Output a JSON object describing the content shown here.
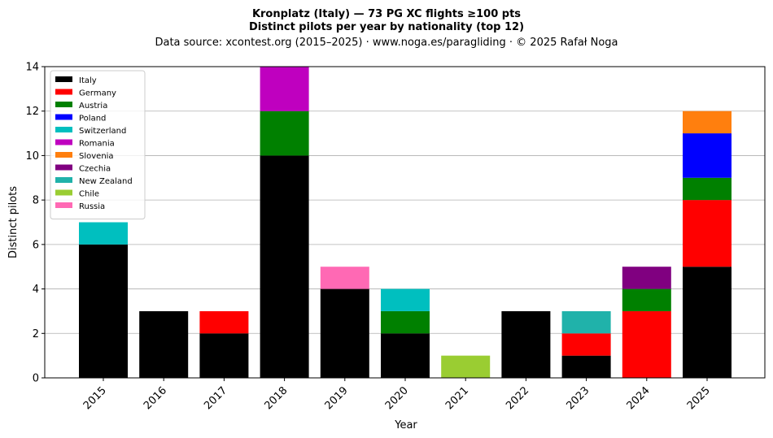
{
  "chart_data": {
    "type": "bar",
    "stacked": true,
    "title": "Kronplatz (Italy)  —  73 PG XC flights ≥100 pts",
    "subtitle": "Distinct pilots per year by nationality (top 12)",
    "source": "Data source: xcontest.org (2015–2025)  ·  www.noga.es/paragliding  ·  © 2025 Rafał Noga",
    "xlabel": "Year",
    "ylabel": "Distinct pilots",
    "ylim": [
      0,
      14
    ],
    "yticks": [
      "0",
      "2",
      "4",
      "6",
      "8",
      "10",
      "12",
      "14"
    ],
    "grid": "horizontal",
    "legend_position": "top-left",
    "categories": [
      "2015",
      "2016",
      "2017",
      "2018",
      "2019",
      "2020",
      "2021",
      "2022",
      "2023",
      "2024",
      "2025"
    ],
    "series": [
      {
        "name": "Italy",
        "color": "#000000",
        "values": [
          6,
          3,
          2,
          10,
          4,
          2,
          0,
          3,
          1,
          0,
          5
        ]
      },
      {
        "name": "Germany",
        "color": "#ff0000",
        "values": [
          0,
          0,
          1,
          0,
          0,
          0,
          0,
          0,
          1,
          3,
          3
        ]
      },
      {
        "name": "Austria",
        "color": "#008000",
        "values": [
          0,
          0,
          0,
          2,
          0,
          1,
          0,
          0,
          0,
          1,
          1
        ]
      },
      {
        "name": "Poland",
        "color": "#0000ff",
        "values": [
          0,
          0,
          0,
          0,
          0,
          0,
          0,
          0,
          0,
          0,
          2
        ]
      },
      {
        "name": "Switzerland",
        "color": "#00bfbf",
        "values": [
          1,
          0,
          0,
          0,
          0,
          1,
          0,
          0,
          0,
          0,
          0
        ]
      },
      {
        "name": "Romania",
        "color": "#bf00bf",
        "values": [
          0,
          0,
          0,
          2,
          0,
          0,
          0,
          0,
          0,
          0,
          0
        ]
      },
      {
        "name": "Slovenia",
        "color": "#ff7f0e",
        "values": [
          0,
          0,
          0,
          0,
          0,
          0,
          0,
          0,
          0,
          0,
          1
        ]
      },
      {
        "name": "Czechia",
        "color": "#800080",
        "values": [
          0,
          0,
          0,
          0,
          0,
          0,
          0,
          0,
          0,
          1,
          0
        ]
      },
      {
        "name": "New Zealand",
        "color": "#20b2aa",
        "values": [
          0,
          0,
          0,
          0,
          0,
          0,
          0,
          0,
          1,
          0,
          0
        ]
      },
      {
        "name": "Chile",
        "color": "#9acd32",
        "values": [
          0,
          0,
          0,
          0,
          0,
          0,
          1,
          0,
          0,
          0,
          0
        ]
      },
      {
        "name": "Russia",
        "color": "#ff69b4",
        "values": [
          0,
          0,
          0,
          0,
          1,
          0,
          0,
          0,
          0,
          0,
          0
        ]
      }
    ]
  }
}
